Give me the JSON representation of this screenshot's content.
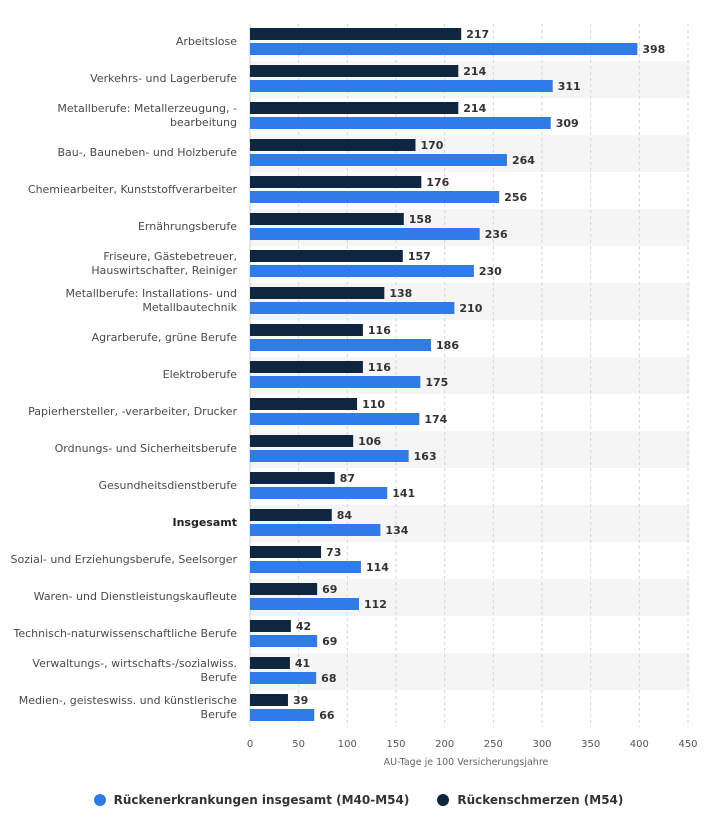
{
  "chart_data": {
    "type": "bar",
    "orientation": "horizontal",
    "categories": [
      "Arbeitslose",
      "Verkehrs- und Lagerberufe",
      "Metallberufe: Metallerzeugung, -bearbeitung",
      "Bau-, Bauneben- und Holzberufe",
      "Chemiearbeiter, Kunststoffverarbeiter",
      "Ernährungsberufe",
      "Friseure, Gästebetreuer, Hauswirtschafter, Reiniger",
      "Metallberufe: Installations- und Metallbautechnik",
      "Agrarberufe, grüne Berufe",
      "Elektroberufe",
      "Papierhersteller, -verarbeiter, Drucker",
      "Ordnungs- und Sicherheitsberufe",
      "Gesundheitsdienstberufe",
      "Insgesamt",
      "Sozial- und Erziehungsberufe, Seelsorger",
      "Waren- und Dienstleistungskaufleute",
      "Technisch-naturwissenschaftliche Berufe",
      "Verwaltungs-, wirtschafts-/sozialwiss. Berufe",
      "Medien-, geisteswiss. und künstlerische Berufe"
    ],
    "category_lines": [
      [
        "Arbeitslose"
      ],
      [
        "Verkehrs- und Lagerberufe"
      ],
      [
        "Metallberufe: Metallerzeugung, -",
        "bearbeitung"
      ],
      [
        "Bau-, Bauneben- und Holzberufe"
      ],
      [
        "Chemiearbeiter, Kunststoffverarbeiter"
      ],
      [
        "Ernährungsberufe"
      ],
      [
        "Friseure, Gästebetreuer,",
        "Hauswirtschafter, Reiniger"
      ],
      [
        "Metallberufe: Installations- und",
        "Metallbautechnik"
      ],
      [
        "Agrarberufe, grüne Berufe"
      ],
      [
        "Elektroberufe"
      ],
      [
        "Papierhersteller, -verarbeiter, Drucker"
      ],
      [
        "Ordnungs- und Sicherheitsberufe"
      ],
      [
        "Gesundheitsdienstberufe"
      ],
      [
        "Insgesamt"
      ],
      [
        "Sozial- und Erziehungsberufe, Seelsorger"
      ],
      [
        "Waren- und Dienstleistungskaufleute"
      ],
      [
        "Technisch-naturwissenschaftliche Berufe"
      ],
      [
        "Verwaltungs-, wirtschafts-/sozialwiss.",
        "Berufe"
      ],
      [
        "Medien-, geisteswiss. und künstlerische",
        "Berufe"
      ]
    ],
    "bold_category": "Insgesamt",
    "series": [
      {
        "name": "Rückenschmerzen (M54)",
        "color": "#0f2640",
        "values": [
          217,
          214,
          214,
          170,
          176,
          158,
          157,
          138,
          116,
          116,
          110,
          106,
          87,
          84,
          73,
          69,
          42,
          41,
          39
        ]
      },
      {
        "name": "Rückenerkrankungen insgesamt (M40-M54)",
        "color": "#2f7ce8",
        "values": [
          398,
          311,
          309,
          264,
          256,
          236,
          230,
          210,
          186,
          175,
          174,
          163,
          141,
          134,
          114,
          112,
          69,
          68,
          66
        ]
      }
    ],
    "xlim": [
      0,
      450
    ],
    "xticks": [
      0,
      50,
      100,
      150,
      200,
      250,
      300,
      350,
      400,
      450
    ],
    "xlabel": "AU-Tage je 100 Versicherungsjahre",
    "ylabel": "",
    "title": "",
    "grid": true,
    "legend_position": "bottom",
    "legend_order": [
      "Rückenerkrankungen insgesamt (M40-M54)",
      "Rückenschmerzen (M54)"
    ]
  }
}
